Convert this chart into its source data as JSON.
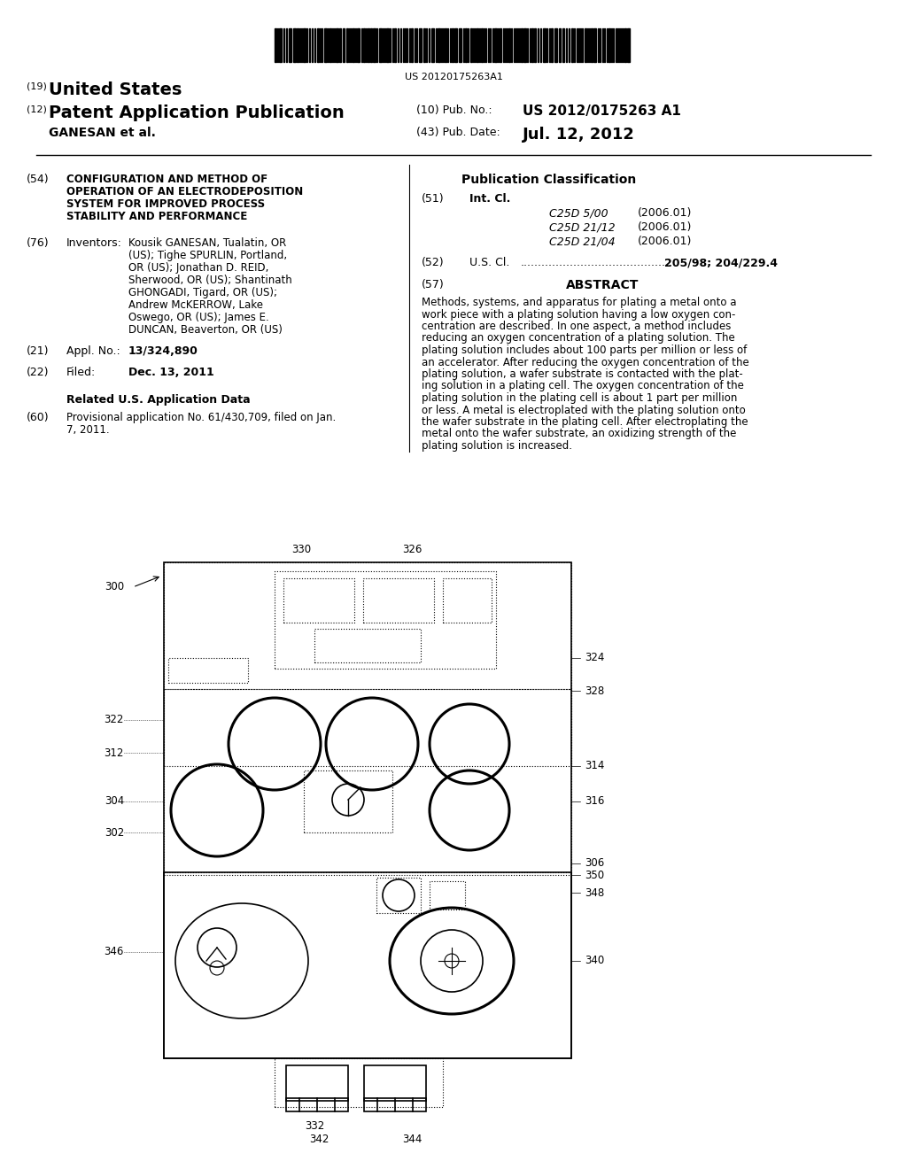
{
  "bg_color": "#ffffff",
  "barcode_text": "US 20120175263A1",
  "title_19": "(19)",
  "title_us": "United States",
  "title_12": "(12)",
  "title_pub": "Patent Application Publication",
  "title_10": "(10) Pub. No.:",
  "pub_no": "US 2012/0175263 A1",
  "author": "GANESAN et al.",
  "title_43": "(43) Pub. Date:",
  "pub_date": "Jul. 12, 2012",
  "field_54": "(54)",
  "title_54": "CONFIGURATION AND METHOD OF\nOPERATION OF AN ELECTRODEPOSITION\nSYSTEM FOR IMPROVED PROCESS\nSTABILITY AND PERFORMANCE",
  "field_76": "(76)",
  "label_inventors": "Inventors:",
  "inventors_text": "Kousik GANESAN, Tualatin, OR\n(US); Tighe SPURLIN, Portland,\nOR (US); Jonathan D. REID,\nSherwood, OR (US); Shantinath\nGHONGADI, Tigard, OR (US);\nAndrew McKERROW, Lake\nOswego, OR (US); James E.\nDUNCAN, Beaverton, OR (US)",
  "field_21": "(21)",
  "label_appl": "Appl. No.:",
  "appl_no": "13/324,890",
  "field_22": "(22)",
  "label_filed": "Filed:",
  "filed_date": "Dec. 13, 2011",
  "related_data_title": "Related U.S. Application Data",
  "field_60": "(60)",
  "related_text": "Provisional application No. 61/430,709, filed on Jan.\n7, 2011.",
  "pub_class_title": "Publication Classification",
  "field_51": "(51)",
  "label_intcl": "Int. Cl.",
  "intcl_1": "C25D 5/00",
  "intcl_1_date": "(2006.01)",
  "intcl_2": "C25D 21/12",
  "intcl_2_date": "(2006.01)",
  "intcl_3": "C25D 21/04",
  "intcl_3_date": "(2006.01)",
  "field_52": "(52)",
  "label_uscl": "U.S. Cl.",
  "uscl_dots": "...........................................",
  "uscl_val": "205/98",
  "uscl_val2": "204/229.4",
  "field_57": "(57)",
  "abstract_title": "ABSTRACT",
  "abstract_text": "Methods, systems, and apparatus for plating a metal onto a\nwork piece with a plating solution having a low oxygen con-\ncentration are described. In one aspect, a method includes\nreducing an oxygen concentration of a plating solution. The\nplating solution includes about 100 parts per million or less of\nan accelerator. After reducing the oxygen concentration of the\nplating solution, a wafer substrate is contacted with the plat-\ning solution in a plating cell. The oxygen concentration of the\nplating solution in the plating cell is about 1 part per million\nor less. A metal is electroplated with the plating solution onto\nthe wafer substrate in the plating cell. After electroplating the\nmetal onto the wafer substrate, an oxidizing strength of the\nplating solution is increased."
}
